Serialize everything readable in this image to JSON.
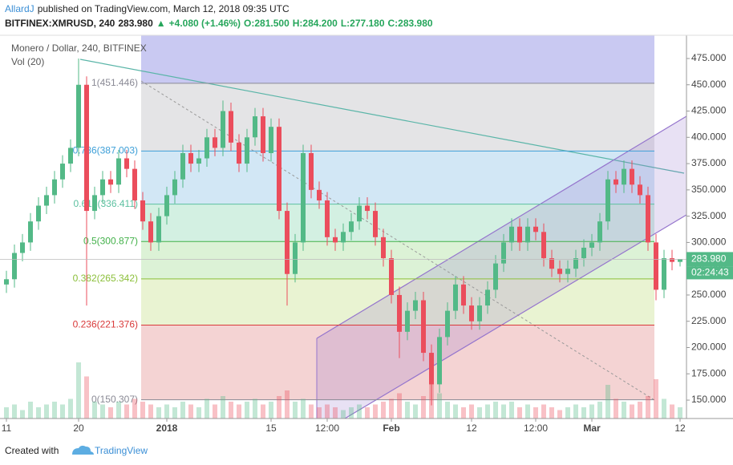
{
  "header": {
    "author": "AllardJ",
    "published": "published on TradingView.com, March 12, 2018 09:35 UTC",
    "symbol": "BITFINEX:XMRUSD, 240",
    "last": "283.980",
    "change": "+4.080 (+1.46%)",
    "open": "O:281.500",
    "high": "H:284.200",
    "low": "L:277.180",
    "close": "C:283.980"
  },
  "footer": {
    "created": "Created with",
    "brand": "TradingView"
  },
  "chart_data": {
    "type": "candlestick",
    "title": "Monero / Dollar, 240, BITFINEX",
    "volume_label": "Vol (20)",
    "categories": [
      "11",
      null,
      null,
      null,
      null,
      null,
      null,
      null,
      null,
      "20",
      null,
      null,
      null,
      null,
      null,
      null,
      null,
      null,
      null,
      null,
      "2018",
      null,
      null,
      null,
      null,
      null,
      null,
      null,
      null,
      null,
      null,
      null,
      null,
      "15",
      null,
      null,
      null,
      null,
      null,
      null,
      "12:00",
      null,
      null,
      null,
      null,
      null,
      null,
      null,
      "Feb",
      null,
      null,
      null,
      null,
      null,
      null,
      null,
      null,
      null,
      "12",
      null,
      null,
      null,
      null,
      null,
      null,
      null,
      "12:00",
      null,
      null,
      null,
      null,
      null,
      null,
      "Mar",
      null,
      null,
      null,
      null,
      null,
      null,
      null,
      null,
      null,
      null,
      "12"
    ],
    "open": [
      260,
      265,
      290,
      300,
      320,
      335,
      345,
      360,
      375,
      390,
      450,
      330,
      345,
      360,
      355,
      380,
      370,
      340,
      320,
      300,
      325,
      345,
      360,
      385,
      375,
      380,
      400,
      390,
      425,
      395,
      375,
      400,
      420,
      385,
      410,
      330,
      270,
      300,
      385,
      350,
      340,
      305,
      300,
      310,
      320,
      335,
      330,
      305,
      285,
      250,
      215,
      235,
      245,
      195,
      165,
      210,
      235,
      260,
      240,
      225,
      240,
      255,
      280,
      300,
      315,
      300,
      315,
      310,
      285,
      275,
      270,
      275,
      285,
      295,
      300,
      320,
      360,
      355,
      370,
      355,
      345,
      300,
      255,
      285,
      281.5
    ],
    "high": [
      273,
      298,
      308,
      328,
      343,
      353,
      368,
      383,
      398,
      475,
      458,
      353,
      368,
      368,
      388,
      388,
      378,
      348,
      328,
      333,
      353,
      368,
      393,
      393,
      388,
      408,
      408,
      435,
      433,
      403,
      408,
      428,
      428,
      418,
      418,
      338,
      308,
      393,
      393,
      358,
      348,
      313,
      318,
      328,
      343,
      343,
      338,
      313,
      293,
      258,
      243,
      253,
      253,
      203,
      218,
      243,
      268,
      268,
      248,
      248,
      263,
      288,
      308,
      323,
      323,
      323,
      323,
      318,
      293,
      283,
      283,
      293,
      303,
      308,
      328,
      368,
      368,
      378,
      378,
      363,
      353,
      308,
      293,
      293,
      284.2
    ],
    "low": [
      252,
      257,
      282,
      292,
      312,
      327,
      337,
      352,
      367,
      382,
      240,
      322,
      337,
      347,
      347,
      362,
      332,
      312,
      292,
      292,
      317,
      337,
      352,
      367,
      367,
      372,
      382,
      382,
      387,
      367,
      367,
      392,
      377,
      377,
      322,
      240,
      262,
      292,
      342,
      332,
      297,
      292,
      292,
      302,
      312,
      322,
      297,
      277,
      242,
      190,
      207,
      227,
      187,
      145,
      157,
      202,
      227,
      232,
      217,
      217,
      232,
      247,
      272,
      292,
      292,
      292,
      302,
      277,
      267,
      262,
      262,
      267,
      277,
      287,
      292,
      312,
      347,
      347,
      347,
      337,
      292,
      245,
      247,
      273.5,
      277.18
    ],
    "close": [
      265,
      290,
      300,
      320,
      335,
      345,
      360,
      375,
      390,
      450,
      330,
      345,
      360,
      355,
      380,
      370,
      340,
      320,
      300,
      325,
      345,
      360,
      385,
      375,
      380,
      400,
      390,
      425,
      395,
      375,
      400,
      420,
      385,
      410,
      330,
      270,
      300,
      385,
      350,
      340,
      305,
      300,
      310,
      320,
      335,
      330,
      305,
      285,
      250,
      215,
      235,
      245,
      195,
      165,
      210,
      235,
      260,
      240,
      225,
      240,
      255,
      280,
      300,
      315,
      300,
      315,
      310,
      285,
      275,
      270,
      275,
      285,
      295,
      300,
      320,
      360,
      355,
      370,
      355,
      345,
      300,
      255,
      285,
      281.5,
      283.98
    ],
    "volume": [
      4,
      5,
      3,
      6,
      4,
      5,
      6,
      5,
      7,
      20,
      15,
      6,
      5,
      4,
      6,
      5,
      7,
      6,
      5,
      4,
      5,
      4,
      6,
      5,
      4,
      7,
      5,
      8,
      6,
      5,
      6,
      7,
      5,
      6,
      8,
      10,
      6,
      7,
      5,
      4,
      5,
      4,
      3,
      4,
      5,
      4,
      5,
      6,
      7,
      9,
      6,
      5,
      8,
      18,
      9,
      6,
      5,
      4,
      5,
      4,
      5,
      6,
      5,
      6,
      4,
      5,
      4,
      5,
      4,
      3,
      4,
      5,
      4,
      5,
      6,
      12,
      7,
      6,
      5,
      6,
      8,
      14,
      7,
      5,
      4
    ],
    "up_color": "#53b987",
    "down_color": "#eb4d5c",
    "ylim": [
      132.5,
      497.1
    ],
    "yticks": [
      {
        "value": 150,
        "label": "150.000"
      },
      {
        "value": 175,
        "label": "175.000"
      },
      {
        "value": 200,
        "label": "200.000"
      },
      {
        "value": 225,
        "label": "225.000"
      },
      {
        "value": 250,
        "label": "250.000"
      },
      {
        "value": 275,
        "label": "275.000"
      },
      {
        "value": 300,
        "label": "300.000"
      },
      {
        "value": 325,
        "label": "325.000"
      },
      {
        "value": 350,
        "label": "350.000"
      },
      {
        "value": 375,
        "label": "375.000"
      },
      {
        "value": 400,
        "label": "400.000"
      },
      {
        "value": 425,
        "label": "425.000"
      },
      {
        "value": 450,
        "label": "450.000"
      },
      {
        "value": 475,
        "label": "475.000"
      }
    ],
    "top_fill": "#c9c9f2",
    "fib_levels": [
      {
        "value": 451.446,
        "label": "1(451.446)",
        "color": "#8a8a95",
        "fill": "#e4e4e6"
      },
      {
        "value": 387.003,
        "label": "0.786(387.003)",
        "color": "#3d9fd8",
        "fill": "#d2e7f5"
      },
      {
        "value": 336.411,
        "label": "0.618(336.411)",
        "color": "#5cc0a0",
        "fill": "#d3f0e2"
      },
      {
        "value": 300.877,
        "label": "0.5(300.877)",
        "color": "#43b14a",
        "fill": "#dcf2d6"
      },
      {
        "value": 265.342,
        "label": "0.382(265.342)",
        "color": "#8bbf3a",
        "fill": "#e9f3d2"
      },
      {
        "value": 221.376,
        "label": "0.236(221.376)",
        "color": "#d93a3a",
        "fill": "#f4d3d3"
      },
      {
        "value": 150.307,
        "label": "0(150.307)",
        "color": "#8a8a95",
        "fill": "#f4d3d3"
      }
    ],
    "last_price": {
      "value": 283.98,
      "label": "283.980"
    },
    "countdown": "02:24:43"
  }
}
